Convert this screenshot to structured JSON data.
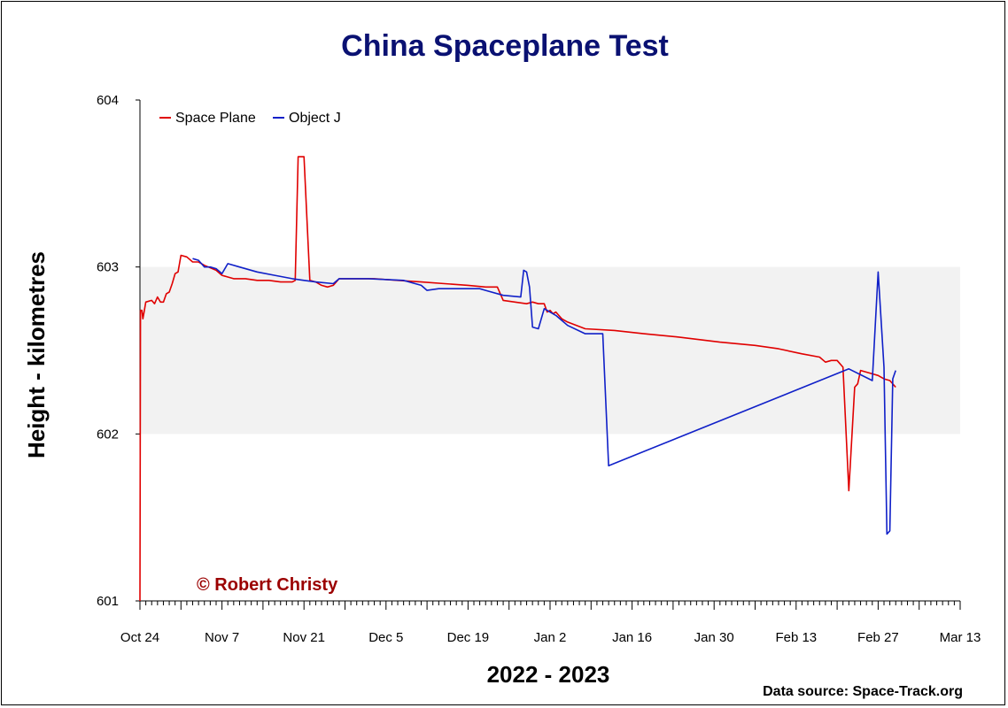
{
  "chart_data": {
    "type": "line",
    "title": "China Spaceplane Test",
    "xlabel": "2022 - 2023",
    "ylabel": "Height - kilometres",
    "ylim": [
      601,
      604
    ],
    "xlim": [
      "2022-10-24",
      "2023-03-13"
    ],
    "yticks": [
      "601",
      "602",
      "603",
      "604"
    ],
    "xtick_labels": [
      "Oct 24",
      "Nov 7",
      "Nov 21",
      "Dec 5",
      "Dec 19",
      "Jan 2",
      "Jan 16",
      "Jan 30",
      "Feb 13",
      "Feb 27",
      "Mar 13"
    ],
    "legend_position": "top-left",
    "band": [
      602,
      603
    ],
    "colors": {
      "band": "#f2f2f2",
      "title": "#0a1172",
      "credit": "#9b0000"
    },
    "series": [
      {
        "name": "Space Plane",
        "color": "#e00000",
        "points": [
          [
            "2022-10-24 00:00",
            601.0
          ],
          [
            "2022-10-24 02:00",
            602.74
          ],
          [
            "2022-10-24 08:00",
            602.74
          ],
          [
            "2022-10-24 12:00",
            602.69
          ],
          [
            "2022-10-24 18:00",
            602.74
          ],
          [
            "2022-10-25 00:00",
            602.79
          ],
          [
            "2022-10-26 00:00",
            602.8
          ],
          [
            "2022-10-26 12:00",
            602.78
          ],
          [
            "2022-10-27 00:00",
            602.82
          ],
          [
            "2022-10-27 12:00",
            602.79
          ],
          [
            "2022-10-28 00:00",
            602.79
          ],
          [
            "2022-10-28 12:00",
            602.84
          ],
          [
            "2022-10-29 00:00",
            602.85
          ],
          [
            "2022-10-29 12:00",
            602.9
          ],
          [
            "2022-10-30 00:00",
            602.96
          ],
          [
            "2022-10-30 12:00",
            602.97
          ],
          [
            "2022-10-31 00:00",
            603.07
          ],
          [
            "2022-11-01 00:00",
            603.06
          ],
          [
            "2022-11-02 00:00",
            603.03
          ],
          [
            "2022-11-03 00:00",
            603.03
          ],
          [
            "2022-11-04 00:00",
            603.01
          ],
          [
            "2022-11-06 00:00",
            602.98
          ],
          [
            "2022-11-07 00:00",
            602.95
          ],
          [
            "2022-11-08 00:00",
            602.94
          ],
          [
            "2022-11-09 00:00",
            602.93
          ],
          [
            "2022-11-11 00:00",
            602.93
          ],
          [
            "2022-11-13 00:00",
            602.92
          ],
          [
            "2022-11-15 00:00",
            602.92
          ],
          [
            "2022-11-17 00:00",
            602.91
          ],
          [
            "2022-11-19 00:00",
            602.91
          ],
          [
            "2022-11-19 12:00",
            602.92
          ],
          [
            "2022-11-20 00:00",
            603.66
          ],
          [
            "2022-11-21 00:00",
            603.66
          ],
          [
            "2022-11-22 00:00",
            602.92
          ],
          [
            "2022-11-23 00:00",
            602.91
          ],
          [
            "2022-11-24 00:00",
            602.89
          ],
          [
            "2022-11-25 00:00",
            602.88
          ],
          [
            "2022-11-26 00:00",
            602.89
          ],
          [
            "2022-11-27 00:00",
            602.93
          ],
          [
            "2022-11-29 00:00",
            602.93
          ],
          [
            "2022-12-03 00:00",
            602.93
          ],
          [
            "2022-12-07 00:00",
            602.92
          ],
          [
            "2022-12-11 00:00",
            602.91
          ],
          [
            "2022-12-15 00:00",
            602.9
          ],
          [
            "2022-12-19 00:00",
            602.89
          ],
          [
            "2022-12-22 00:00",
            602.88
          ],
          [
            "2022-12-24 00:00",
            602.88
          ],
          [
            "2022-12-25 00:00",
            602.8
          ],
          [
            "2022-12-27 00:00",
            602.79
          ],
          [
            "2022-12-29 00:00",
            602.78
          ],
          [
            "2022-12-30 00:00",
            602.79
          ],
          [
            "2022-12-31 00:00",
            602.78
          ],
          [
            "2023-01-01 00:00",
            602.78
          ],
          [
            "2023-01-01 12:00",
            602.73
          ],
          [
            "2023-01-02 00:00",
            602.74
          ],
          [
            "2023-01-02 12:00",
            602.72
          ],
          [
            "2023-01-03 00:00",
            602.73
          ],
          [
            "2023-01-03 12:00",
            602.71
          ],
          [
            "2023-01-04 00:00",
            602.69
          ],
          [
            "2023-01-05 00:00",
            602.67
          ],
          [
            "2023-01-08 00:00",
            602.63
          ],
          [
            "2023-01-13 00:00",
            602.62
          ],
          [
            "2023-01-18 00:00",
            602.6
          ],
          [
            "2023-01-24 00:00",
            602.58
          ],
          [
            "2023-01-31 00:00",
            602.55
          ],
          [
            "2023-02-06 00:00",
            602.53
          ],
          [
            "2023-02-10 00:00",
            602.51
          ],
          [
            "2023-02-14 00:00",
            602.48
          ],
          [
            "2023-02-17 00:00",
            602.46
          ],
          [
            "2023-02-18 00:00",
            602.43
          ],
          [
            "2023-02-19 00:00",
            602.44
          ],
          [
            "2023-02-20 00:00",
            602.44
          ],
          [
            "2023-02-21 00:00",
            602.4
          ],
          [
            "2023-02-22 00:00",
            601.66
          ],
          [
            "2023-02-23 00:00",
            602.28
          ],
          [
            "2023-02-23 12:00",
            602.3
          ],
          [
            "2023-02-24 00:00",
            602.38
          ],
          [
            "2023-02-25 00:00",
            602.37
          ],
          [
            "2023-02-26 00:00",
            602.36
          ],
          [
            "2023-02-27 00:00",
            602.35
          ],
          [
            "2023-02-28 00:00",
            602.33
          ],
          [
            "2023-03-01 00:00",
            602.32
          ],
          [
            "2023-03-02 00:00",
            602.28
          ]
        ]
      },
      {
        "name": "Object J",
        "color": "#1020c8",
        "points": [
          [
            "2022-11-02 00:00",
            603.05
          ],
          [
            "2022-11-03 00:00",
            603.04
          ],
          [
            "2022-11-04 00:00",
            603.0
          ],
          [
            "2022-11-05 00:00",
            603.0
          ],
          [
            "2022-11-06 00:00",
            602.99
          ],
          [
            "2022-11-07 00:00",
            602.96
          ],
          [
            "2022-11-08 00:00",
            603.02
          ],
          [
            "2022-11-10 00:00",
            603.0
          ],
          [
            "2022-11-13 00:00",
            602.97
          ],
          [
            "2022-11-16 00:00",
            602.95
          ],
          [
            "2022-11-19 00:00",
            602.93
          ],
          [
            "2022-11-21 00:00",
            602.92
          ],
          [
            "2022-11-23 00:00",
            602.91
          ],
          [
            "2022-11-26 00:00",
            602.9
          ],
          [
            "2022-11-27 00:00",
            602.93
          ],
          [
            "2022-12-02 00:00",
            602.93
          ],
          [
            "2022-12-08 00:00",
            602.92
          ],
          [
            "2022-12-11 00:00",
            602.89
          ],
          [
            "2022-12-12 00:00",
            602.86
          ],
          [
            "2022-12-14 00:00",
            602.87
          ],
          [
            "2022-12-18 00:00",
            602.87
          ],
          [
            "2022-12-21 00:00",
            602.87
          ],
          [
            "2022-12-22 00:00",
            602.86
          ],
          [
            "2022-12-25 00:00",
            602.83
          ],
          [
            "2022-12-28 00:00",
            602.82
          ],
          [
            "2022-12-28 12:00",
            602.98
          ],
          [
            "2022-12-29 00:00",
            602.97
          ],
          [
            "2022-12-29 12:00",
            602.88
          ],
          [
            "2022-12-30 00:00",
            602.64
          ],
          [
            "2022-12-31 00:00",
            602.63
          ],
          [
            "2023-01-01 00:00",
            602.75
          ],
          [
            "2023-01-03 00:00",
            602.71
          ],
          [
            "2023-01-04 00:00",
            602.68
          ],
          [
            "2023-01-05 00:00",
            602.65
          ],
          [
            "2023-01-08 00:00",
            602.6
          ],
          [
            "2023-01-11 00:00",
            602.6
          ],
          [
            "2023-01-12 00:00",
            601.81
          ],
          [
            "2023-02-22 00:00",
            602.39
          ],
          [
            "2023-02-26 00:00",
            602.32
          ],
          [
            "2023-02-27 00:00",
            602.97
          ],
          [
            "2023-02-28 00:00",
            602.4
          ],
          [
            "2023-02-28 12:00",
            601.4
          ],
          [
            "2023-03-01 00:00",
            601.42
          ],
          [
            "2023-03-01 12:00",
            602.33
          ],
          [
            "2023-03-02 00:00",
            602.38
          ]
        ]
      }
    ],
    "annotations": [
      "© Robert Christy"
    ]
  },
  "source_note": "Data source: Space-Track.org"
}
